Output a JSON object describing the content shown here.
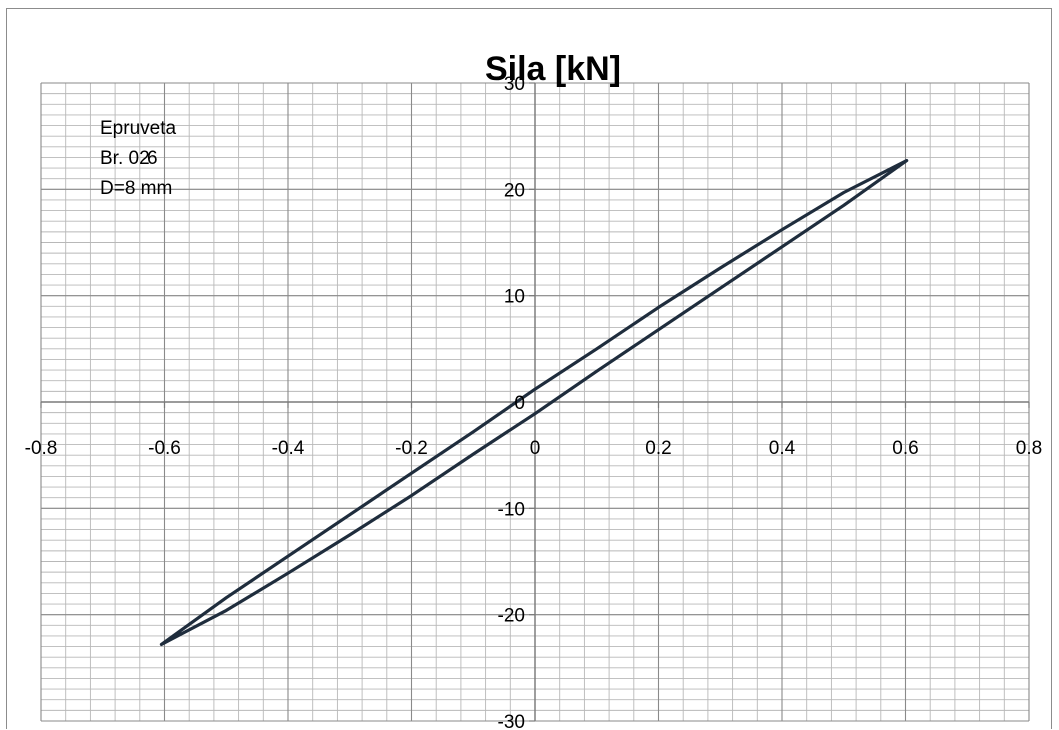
{
  "chart_data": {
    "type": "scatter",
    "title": "Sila [kN]",
    "xlabel": "",
    "ylabel": "",
    "xlim": [
      -0.8,
      0.8
    ],
    "ylim": [
      -30,
      30
    ],
    "x_ticks": [
      "-0.8",
      "-0.6",
      "-0.4",
      "-0.2",
      "0",
      "0.2",
      "0.4",
      "0.6",
      "0.8"
    ],
    "y_ticks": [
      "-30",
      "-20",
      "-10",
      "0",
      "10",
      "20",
      "30"
    ],
    "grid": true,
    "minor_grid": true,
    "legend": "none",
    "annotation": {
      "lines": [
        "Epruveta",
        "Br. 02",
        "D=8 mm"
      ],
      "overprint": "6"
    },
    "series": [
      {
        "color": "#1f2d3d",
        "x": [
          -0.605,
          -0.5,
          -0.4,
          -0.3,
          -0.2,
          -0.1,
          0.0,
          0.1,
          0.2,
          0.3,
          0.4,
          0.5,
          0.602,
          0.5,
          0.4,
          0.3,
          0.2,
          0.1,
          0.0,
          -0.1,
          -0.2,
          -0.3,
          -0.4,
          -0.5,
          -0.605
        ],
        "y": [
          -22.8,
          -18.4,
          -14.5,
          -10.6,
          -6.7,
          -2.8,
          1.2,
          5.0,
          8.9,
          12.6,
          16.2,
          19.7,
          22.7,
          18.5,
          14.6,
          10.7,
          6.8,
          2.9,
          -1.1,
          -4.9,
          -8.8,
          -12.5,
          -16.1,
          -19.6,
          -22.8
        ]
      }
    ]
  }
}
